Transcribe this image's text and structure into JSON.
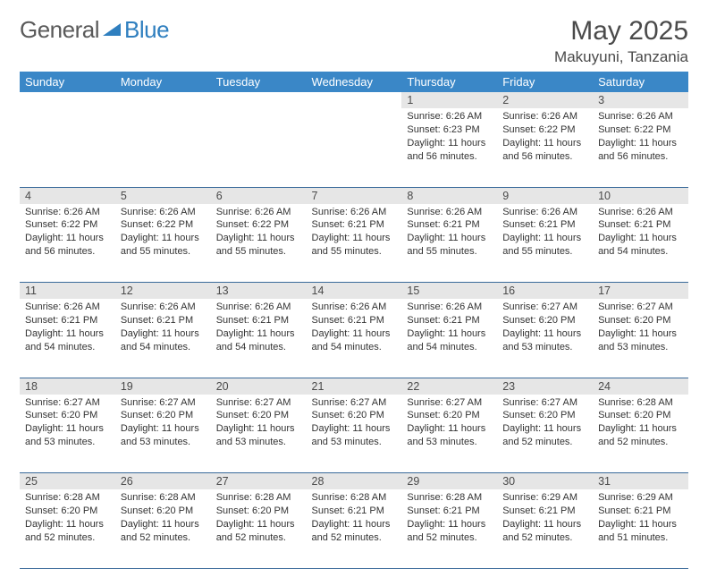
{
  "logo": {
    "part1": "General",
    "part2": "Blue"
  },
  "header": {
    "title": "May 2025",
    "location": "Makuyuni, Tanzania"
  },
  "colors": {
    "header_bg": "#3a87c7",
    "header_text": "#ffffff",
    "daynum_bg": "#e6e6e6",
    "cell_border": "#3a6a9a",
    "body_text": "#333333",
    "logo_gray": "#5a5a5a",
    "logo_blue": "#2f7fbf"
  },
  "typography": {
    "title_fontsize": 30,
    "location_fontsize": 17,
    "dayhdr_fontsize": 13,
    "daynum_fontsize": 12.5,
    "cell_fontsize": 11
  },
  "day_headers": [
    "Sunday",
    "Monday",
    "Tuesday",
    "Wednesday",
    "Thursday",
    "Friday",
    "Saturday"
  ],
  "weeks": [
    [
      null,
      null,
      null,
      null,
      {
        "n": "1",
        "sr": "6:26 AM",
        "ss": "6:23 PM",
        "dl": "11 hours and 56 minutes."
      },
      {
        "n": "2",
        "sr": "6:26 AM",
        "ss": "6:22 PM",
        "dl": "11 hours and 56 minutes."
      },
      {
        "n": "3",
        "sr": "6:26 AM",
        "ss": "6:22 PM",
        "dl": "11 hours and 56 minutes."
      }
    ],
    [
      {
        "n": "4",
        "sr": "6:26 AM",
        "ss": "6:22 PM",
        "dl": "11 hours and 56 minutes."
      },
      {
        "n": "5",
        "sr": "6:26 AM",
        "ss": "6:22 PM",
        "dl": "11 hours and 55 minutes."
      },
      {
        "n": "6",
        "sr": "6:26 AM",
        "ss": "6:22 PM",
        "dl": "11 hours and 55 minutes."
      },
      {
        "n": "7",
        "sr": "6:26 AM",
        "ss": "6:21 PM",
        "dl": "11 hours and 55 minutes."
      },
      {
        "n": "8",
        "sr": "6:26 AM",
        "ss": "6:21 PM",
        "dl": "11 hours and 55 minutes."
      },
      {
        "n": "9",
        "sr": "6:26 AM",
        "ss": "6:21 PM",
        "dl": "11 hours and 55 minutes."
      },
      {
        "n": "10",
        "sr": "6:26 AM",
        "ss": "6:21 PM",
        "dl": "11 hours and 54 minutes."
      }
    ],
    [
      {
        "n": "11",
        "sr": "6:26 AM",
        "ss": "6:21 PM",
        "dl": "11 hours and 54 minutes."
      },
      {
        "n": "12",
        "sr": "6:26 AM",
        "ss": "6:21 PM",
        "dl": "11 hours and 54 minutes."
      },
      {
        "n": "13",
        "sr": "6:26 AM",
        "ss": "6:21 PM",
        "dl": "11 hours and 54 minutes."
      },
      {
        "n": "14",
        "sr": "6:26 AM",
        "ss": "6:21 PM",
        "dl": "11 hours and 54 minutes."
      },
      {
        "n": "15",
        "sr": "6:26 AM",
        "ss": "6:21 PM",
        "dl": "11 hours and 54 minutes."
      },
      {
        "n": "16",
        "sr": "6:27 AM",
        "ss": "6:20 PM",
        "dl": "11 hours and 53 minutes."
      },
      {
        "n": "17",
        "sr": "6:27 AM",
        "ss": "6:20 PM",
        "dl": "11 hours and 53 minutes."
      }
    ],
    [
      {
        "n": "18",
        "sr": "6:27 AM",
        "ss": "6:20 PM",
        "dl": "11 hours and 53 minutes."
      },
      {
        "n": "19",
        "sr": "6:27 AM",
        "ss": "6:20 PM",
        "dl": "11 hours and 53 minutes."
      },
      {
        "n": "20",
        "sr": "6:27 AM",
        "ss": "6:20 PM",
        "dl": "11 hours and 53 minutes."
      },
      {
        "n": "21",
        "sr": "6:27 AM",
        "ss": "6:20 PM",
        "dl": "11 hours and 53 minutes."
      },
      {
        "n": "22",
        "sr": "6:27 AM",
        "ss": "6:20 PM",
        "dl": "11 hours and 53 minutes."
      },
      {
        "n": "23",
        "sr": "6:27 AM",
        "ss": "6:20 PM",
        "dl": "11 hours and 52 minutes."
      },
      {
        "n": "24",
        "sr": "6:28 AM",
        "ss": "6:20 PM",
        "dl": "11 hours and 52 minutes."
      }
    ],
    [
      {
        "n": "25",
        "sr": "6:28 AM",
        "ss": "6:20 PM",
        "dl": "11 hours and 52 minutes."
      },
      {
        "n": "26",
        "sr": "6:28 AM",
        "ss": "6:20 PM",
        "dl": "11 hours and 52 minutes."
      },
      {
        "n": "27",
        "sr": "6:28 AM",
        "ss": "6:20 PM",
        "dl": "11 hours and 52 minutes."
      },
      {
        "n": "28",
        "sr": "6:28 AM",
        "ss": "6:21 PM",
        "dl": "11 hours and 52 minutes."
      },
      {
        "n": "29",
        "sr": "6:28 AM",
        "ss": "6:21 PM",
        "dl": "11 hours and 52 minutes."
      },
      {
        "n": "30",
        "sr": "6:29 AM",
        "ss": "6:21 PM",
        "dl": "11 hours and 52 minutes."
      },
      {
        "n": "31",
        "sr": "6:29 AM",
        "ss": "6:21 PM",
        "dl": "11 hours and 51 minutes."
      }
    ]
  ],
  "labels": {
    "sunrise": "Sunrise:",
    "sunset": "Sunset:",
    "daylight": "Daylight:"
  }
}
